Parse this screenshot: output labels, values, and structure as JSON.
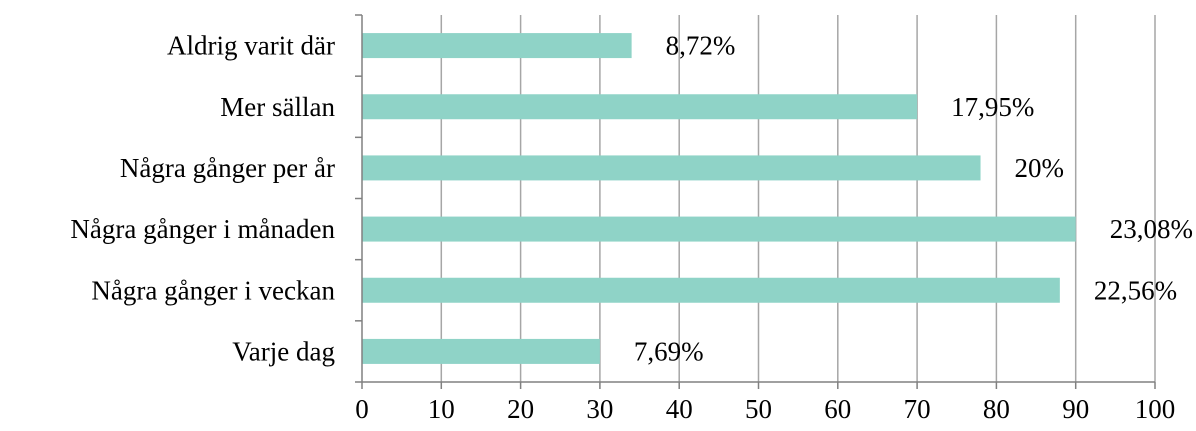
{
  "chart_data": {
    "type": "bar",
    "orientation": "horizontal",
    "categories": [
      "Aldrig varit där",
      "Mer sällan",
      "Några gånger per år",
      "Några gånger i månaden",
      "Några gånger i veckan",
      "Varje dag"
    ],
    "values": [
      34,
      70,
      78,
      90,
      88,
      30
    ],
    "data_labels": [
      "8,72%",
      "17,95%",
      "20%",
      "23,08%",
      "22,56%",
      "7,69%"
    ],
    "xlim": [
      0,
      100
    ],
    "xticks": [
      0,
      10,
      20,
      30,
      40,
      50,
      60,
      70,
      80,
      90,
      100
    ],
    "grid": true,
    "legend": "none",
    "title": "",
    "xlabel": "",
    "ylabel": "",
    "colors": {
      "bar": "#8fd3c7",
      "grid": "#a6a6a6",
      "axis": "#808080",
      "text": "#000000"
    }
  }
}
